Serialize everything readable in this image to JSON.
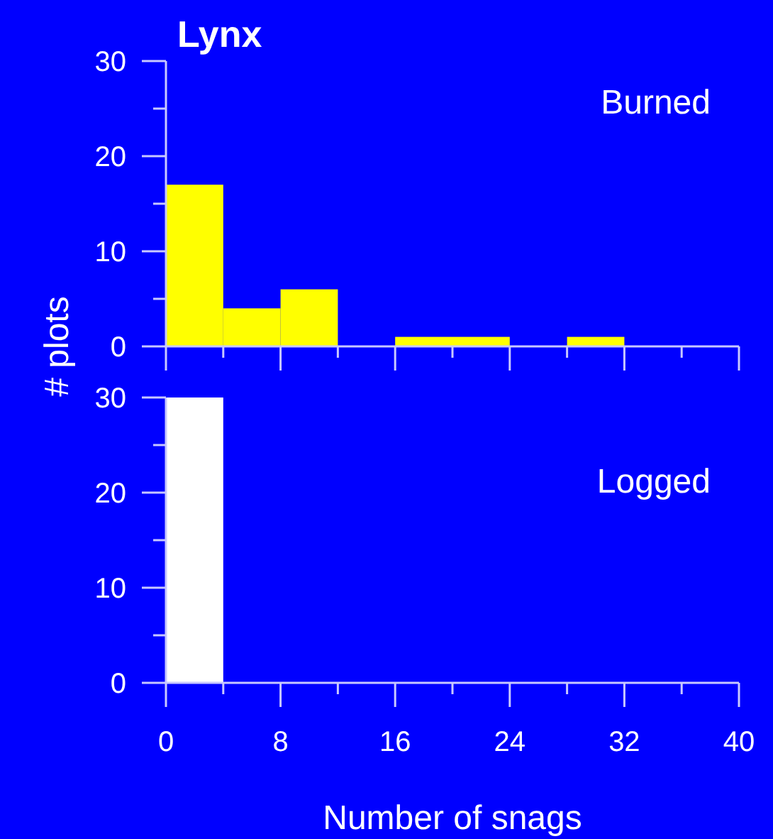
{
  "chart_data": [
    {
      "type": "histogram",
      "title": "Lynx",
      "ylabel": "# plots",
      "annotations": [
        "Burned"
      ],
      "color": "#ffff00",
      "bins": [
        0,
        4,
        8,
        12,
        16,
        20,
        24,
        28,
        32,
        36,
        40
      ],
      "values": [
        17,
        4,
        6,
        0,
        1,
        1,
        0,
        1,
        0,
        0
      ],
      "xlim": [
        0,
        40
      ],
      "xticks": [
        0,
        {
          "value": 4,
          "label": null
        },
        8,
        {
          "value": 12,
          "label": null
        },
        16,
        {
          "value": 20,
          "label": null
        },
        24,
        {
          "value": 28,
          "label": null
        },
        32,
        {
          "value": 36,
          "label": null
        },
        40
      ],
      "ylim": [
        0,
        30
      ],
      "yticks": [
        0,
        {
          "value": 5,
          "label": null
        },
        10,
        {
          "value": 15,
          "label": null
        },
        20,
        {
          "value": 25,
          "label": null
        },
        30
      ],
      "tick_labels": "y",
      "grid": false
    },
    {
      "type": "histogram",
      "xlabel": "Number of snags",
      "annotations": [
        "Logged"
      ],
      "color": "#ffffff",
      "bins": [
        0,
        4,
        8,
        12,
        16,
        20,
        24,
        28,
        32,
        36,
        40
      ],
      "values": [
        30,
        0,
        0,
        0,
        0,
        0,
        0,
        0,
        0,
        0
      ],
      "xlim": [
        0,
        40
      ],
      "xticks": [
        0,
        {
          "value": 4,
          "label": null
        },
        8,
        {
          "value": 12,
          "label": null
        },
        16,
        {
          "value": 20,
          "label": null
        },
        24,
        {
          "value": 28,
          "label": null
        },
        32,
        {
          "value": 36,
          "label": null
        },
        40
      ],
      "ylim": [
        0,
        30
      ],
      "yticks": [
        0,
        {
          "value": 5,
          "label": null
        },
        10,
        {
          "value": 15,
          "label": null
        },
        20,
        {
          "value": 25,
          "label": null
        },
        30
      ],
      "grid": false
    }
  ]
}
